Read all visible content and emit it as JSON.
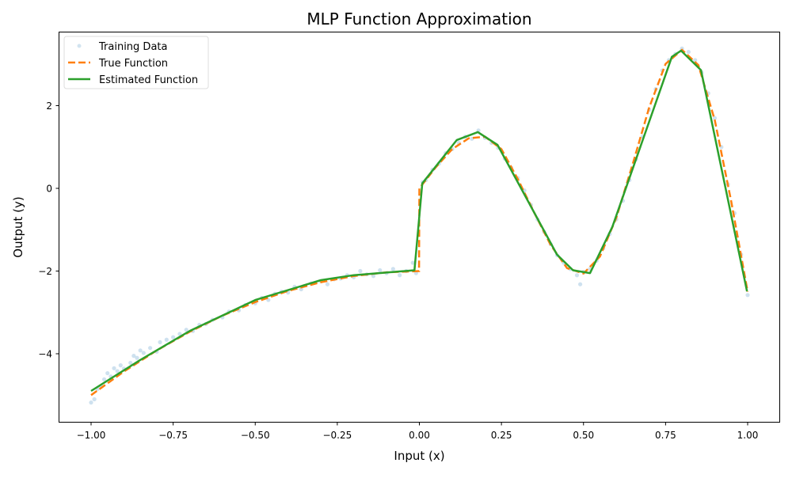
{
  "chart_data": {
    "type": "line",
    "title": "MLP Function Approximation",
    "xlabel": "Input (x)",
    "ylabel": "Output (y)",
    "xlim": [
      -1.1,
      1.1
    ],
    "ylim": [
      -5.67,
      3.79
    ],
    "xticks": [
      -1.0,
      -0.75,
      -0.5,
      -0.25,
      0.0,
      0.25,
      0.5,
      0.75,
      1.0
    ],
    "xtick_labels": [
      "−1.00",
      "−0.75",
      "−0.50",
      "−0.25",
      "0.00",
      "0.25",
      "0.50",
      "0.75",
      "1.00"
    ],
    "yticks": [
      -4,
      -2,
      0,
      2
    ],
    "ytick_labels": [
      "−4",
      "−2",
      "0",
      "2"
    ],
    "grid": false,
    "legend_position": "top-left",
    "colors": {
      "training": "#1f77b4",
      "true": "#ff7f0e",
      "estimated": "#2ca02c"
    },
    "series": [
      {
        "name": "Training Data",
        "kind": "scatter",
        "points": [
          [
            -1.0,
            -5.18
          ],
          [
            -0.99,
            -5.1
          ],
          [
            -0.98,
            -4.85
          ],
          [
            -0.97,
            -4.78
          ],
          [
            -0.96,
            -4.62
          ],
          [
            -0.95,
            -4.47
          ],
          [
            -0.94,
            -4.55
          ],
          [
            -0.93,
            -4.35
          ],
          [
            -0.92,
            -4.42
          ],
          [
            -0.91,
            -4.28
          ],
          [
            -0.9,
            -4.36
          ],
          [
            -0.88,
            -4.22
          ],
          [
            -0.87,
            -4.05
          ],
          [
            -0.86,
            -4.1
          ],
          [
            -0.85,
            -3.92
          ],
          [
            -0.84,
            -3.98
          ],
          [
            -0.82,
            -3.86
          ],
          [
            -0.8,
            -3.95
          ],
          [
            -0.79,
            -3.72
          ],
          [
            -0.77,
            -3.66
          ],
          [
            -0.75,
            -3.6
          ],
          [
            -0.73,
            -3.52
          ],
          [
            -0.71,
            -3.42
          ],
          [
            -0.69,
            -3.45
          ],
          [
            -0.67,
            -3.3
          ],
          [
            -0.65,
            -3.28
          ],
          [
            -0.63,
            -3.18
          ],
          [
            -0.6,
            -3.12
          ],
          [
            -0.58,
            -2.98
          ],
          [
            -0.55,
            -2.95
          ],
          [
            -0.53,
            -2.82
          ],
          [
            -0.5,
            -2.78
          ],
          [
            -0.48,
            -2.65
          ],
          [
            -0.46,
            -2.7
          ],
          [
            -0.44,
            -2.55
          ],
          [
            -0.42,
            -2.5
          ],
          [
            -0.4,
            -2.52
          ],
          [
            -0.38,
            -2.38
          ],
          [
            -0.36,
            -2.44
          ],
          [
            -0.33,
            -2.3
          ],
          [
            -0.3,
            -2.25
          ],
          [
            -0.28,
            -2.32
          ],
          [
            -0.26,
            -2.2
          ],
          [
            -0.24,
            -2.18
          ],
          [
            -0.22,
            -2.1
          ],
          [
            -0.2,
            -2.15
          ],
          [
            -0.18,
            -2.0
          ],
          [
            -0.16,
            -2.08
          ],
          [
            -0.14,
            -2.12
          ],
          [
            -0.12,
            -1.98
          ],
          [
            -0.1,
            -2.05
          ],
          [
            -0.08,
            -1.95
          ],
          [
            -0.06,
            -2.1
          ],
          [
            -0.04,
            -2.0
          ],
          [
            -0.02,
            -1.8
          ],
          [
            -0.01,
            -2.05
          ],
          [
            0.01,
            0.15
          ],
          [
            0.02,
            0.2
          ],
          [
            0.04,
            0.45
          ],
          [
            0.06,
            0.6
          ],
          [
            0.08,
            0.85
          ],
          [
            0.1,
            0.95
          ],
          [
            0.12,
            1.1
          ],
          [
            0.14,
            1.25
          ],
          [
            0.16,
            1.2
          ],
          [
            0.18,
            1.4
          ],
          [
            0.2,
            1.22
          ],
          [
            0.22,
            1.1
          ],
          [
            0.24,
            0.98
          ],
          [
            0.26,
            0.72
          ],
          [
            0.28,
            0.5
          ],
          [
            0.3,
            0.25
          ],
          [
            0.32,
            -0.05
          ],
          [
            0.34,
            -0.4
          ],
          [
            0.36,
            -0.75
          ],
          [
            0.38,
            -1.05
          ],
          [
            0.4,
            -1.35
          ],
          [
            0.42,
            -1.62
          ],
          [
            0.44,
            -1.8
          ],
          [
            0.46,
            -1.95
          ],
          [
            0.48,
            -2.1
          ],
          [
            0.49,
            -2.32
          ],
          [
            0.5,
            -2.02
          ],
          [
            0.52,
            -1.95
          ],
          [
            0.54,
            -1.75
          ],
          [
            0.56,
            -1.45
          ],
          [
            0.58,
            -1.1
          ],
          [
            0.6,
            -0.75
          ],
          [
            0.62,
            -0.3
          ],
          [
            0.64,
            0.2
          ],
          [
            0.66,
            0.7
          ],
          [
            0.68,
            1.25
          ],
          [
            0.7,
            1.9
          ],
          [
            0.72,
            2.4
          ],
          [
            0.74,
            2.85
          ],
          [
            0.76,
            3.1
          ],
          [
            0.78,
            3.25
          ],
          [
            0.8,
            3.38
          ],
          [
            0.82,
            3.3
          ],
          [
            0.84,
            3.1
          ],
          [
            0.86,
            2.8
          ],
          [
            0.88,
            2.3
          ],
          [
            0.9,
            1.7
          ],
          [
            0.92,
            1.0
          ],
          [
            0.94,
            0.1
          ],
          [
            0.96,
            -0.6
          ],
          [
            0.98,
            -1.6
          ],
          [
            1.0,
            -2.58
          ]
        ]
      },
      {
        "name": "True Function",
        "kind": "line-dashed",
        "points": [
          [
            -1.0,
            -5.0
          ],
          [
            -0.9,
            -4.43
          ],
          [
            -0.8,
            -3.92
          ],
          [
            -0.7,
            -3.47
          ],
          [
            -0.6,
            -3.08
          ],
          [
            -0.5,
            -2.75
          ],
          [
            -0.4,
            -2.48
          ],
          [
            -0.3,
            -2.27
          ],
          [
            -0.2,
            -2.12
          ],
          [
            -0.1,
            -2.03
          ],
          [
            -0.001,
            -2.0
          ],
          [
            0.0,
            0.0
          ],
          [
            0.05,
            0.51
          ],
          [
            0.1,
            0.95
          ],
          [
            0.15,
            1.21
          ],
          [
            0.2,
            1.25
          ],
          [
            0.25,
            0.95
          ],
          [
            0.3,
            0.22
          ],
          [
            0.35,
            -0.59
          ],
          [
            0.4,
            -1.37
          ],
          [
            0.45,
            -1.93
          ],
          [
            0.5,
            -2.06
          ],
          [
            0.55,
            -1.65
          ],
          [
            0.6,
            -0.71
          ],
          [
            0.65,
            0.59
          ],
          [
            0.7,
            1.95
          ],
          [
            0.75,
            3.01
          ],
          [
            0.8,
            3.35
          ],
          [
            0.85,
            2.98
          ],
          [
            0.9,
            1.65
          ],
          [
            0.95,
            -0.32
          ],
          [
            1.0,
            -2.5
          ]
        ]
      },
      {
        "name": "Estimated Function",
        "kind": "line",
        "points": [
          [
            -1.0,
            -4.9
          ],
          [
            -0.85,
            -4.15
          ],
          [
            -0.7,
            -3.45
          ],
          [
            -0.5,
            -2.7
          ],
          [
            -0.3,
            -2.22
          ],
          [
            -0.2,
            -2.1
          ],
          [
            -0.015,
            -1.98
          ],
          [
            0.009,
            0.12
          ],
          [
            0.114,
            1.17
          ],
          [
            0.178,
            1.36
          ],
          [
            0.238,
            1.05
          ],
          [
            0.419,
            -1.6
          ],
          [
            0.468,
            -1.98
          ],
          [
            0.52,
            -2.05
          ],
          [
            0.588,
            -0.93
          ],
          [
            0.769,
            3.18
          ],
          [
            0.797,
            3.33
          ],
          [
            0.858,
            2.86
          ],
          [
            0.998,
            -2.49
          ]
        ]
      }
    ]
  }
}
